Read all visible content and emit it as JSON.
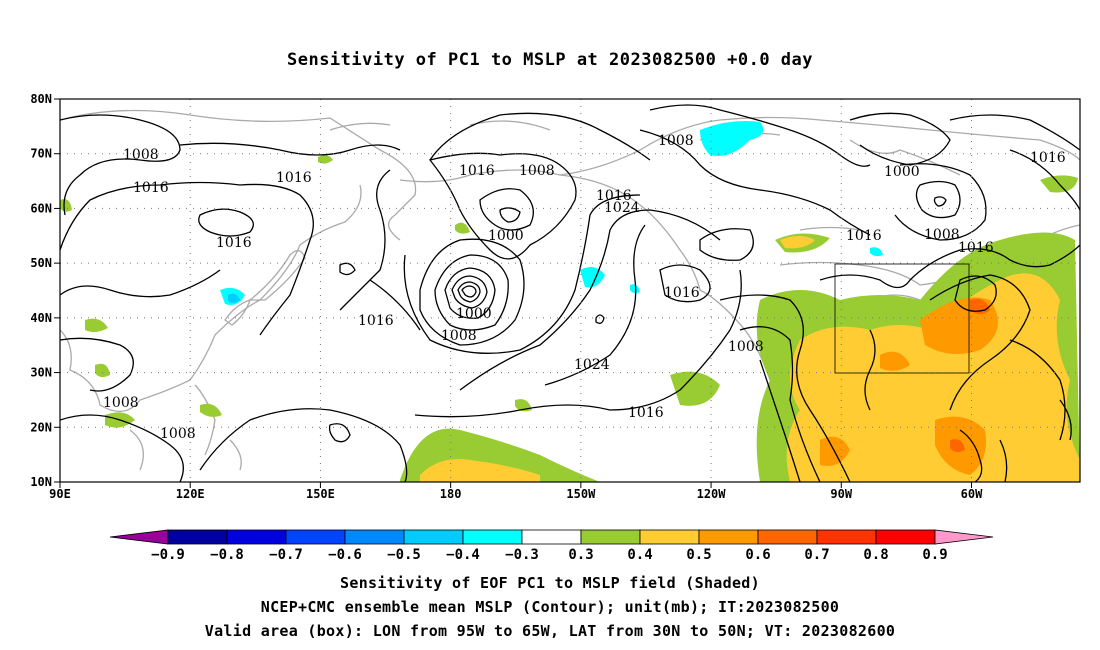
{
  "title": "Sensitivity of PC1 to MSLP at 2023082500 +0.0 day",
  "map": {
    "lat_labels": [
      "80N",
      "70N",
      "60N",
      "50N",
      "40N",
      "30N",
      "20N",
      "10N"
    ],
    "lon_labels": [
      "90E",
      "120E",
      "150E",
      "180",
      "150W",
      "120W",
      "90W",
      "60W"
    ],
    "lon_range": [
      "90E",
      "35W"
    ],
    "lat_range": [
      "10N",
      "80N"
    ],
    "gridlines": "dotted",
    "valid_box": {
      "lon": [
        "95W",
        "65W"
      ],
      "lat": [
        "30N",
        "50N"
      ]
    },
    "contour_labels": [
      "1008",
      "1016",
      "1016",
      "1016",
      "1016",
      "1008",
      "1016",
      "1000",
      "1016",
      "1024",
      "1000",
      "1008",
      "1016",
      "1024",
      "1016",
      "1008",
      "1008",
      "1000",
      "1016",
      "1008",
      "1016",
      "1016",
      "1008",
      "1008",
      "1016",
      "1016"
    ]
  },
  "colors": {
    "neg_0_9": "#990099",
    "neg_0_8": "#0000a0",
    "neg_0_7": "#0000e0",
    "neg_0_6": "#0044ff",
    "neg_0_5": "#0088ff",
    "neg_0_4": "#00ccff",
    "neg_0_3": "#00ffff",
    "neutral": "#ffffff",
    "pos_0_3": "#99cc33",
    "pos_0_4": "#ffcc33",
    "pos_0_5": "#ff9900",
    "pos_0_6": "#ff6600",
    "pos_0_7": "#ff3300",
    "pos_0_8": "#ff0000",
    "pos_0_9": "#ff99cc",
    "coastline": "#aaaaaa",
    "contour": "#000000"
  },
  "colorbar": {
    "labels": [
      "−0.9",
      "−0.8",
      "−0.7",
      "−0.6",
      "−0.5",
      "−0.4",
      "−0.3",
      "0.3",
      "0.4",
      "0.5",
      "0.6",
      "0.7",
      "0.8",
      "0.9"
    ]
  },
  "caption": {
    "line1": "Sensitivity of EOF PC1 to MSLP field (Shaded)",
    "line2": "NCEP+CMC ensemble mean MSLP (Contour); unit(mb); IT:2023082500",
    "line3": "Valid area (box): LON from 95W to 65W, LAT from 30N to 50N; VT: 2023082600"
  }
}
